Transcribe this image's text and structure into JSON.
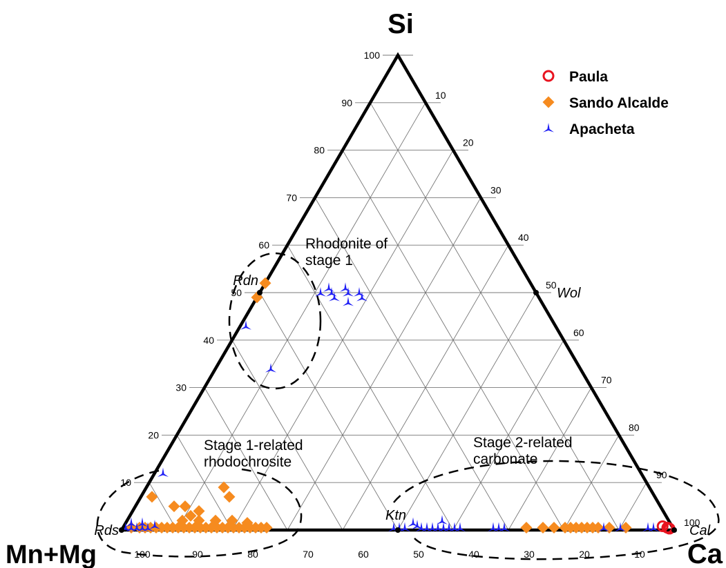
{
  "chart_data": {
    "type": "ternary",
    "vertices": {
      "top": "Si",
      "left": "Mn+Mg",
      "right": "Ca"
    },
    "ticks": {
      "si_axis": [
        "100",
        "90",
        "80",
        "70",
        "60",
        "50",
        "40",
        "30",
        "20",
        "10"
      ],
      "ca_axis": [
        "10",
        "20",
        "30",
        "40",
        "50",
        "60",
        "70",
        "80",
        "90",
        "100"
      ],
      "mn_axis": [
        "100",
        "90",
        "80",
        "70",
        "60",
        "50",
        "40",
        "30",
        "20",
        "10"
      ]
    },
    "legend": [
      {
        "name": "Paula",
        "marker": "circle",
        "color": "#e8131f"
      },
      {
        "name": "Sando Alcalde",
        "marker": "diamond",
        "color": "#f68b1f"
      },
      {
        "name": "Apacheta",
        "marker": "tripod",
        "color": "#1f1ff5"
      }
    ],
    "minerals": [
      {
        "name": "Rdn",
        "si": 50,
        "ca": 0
      },
      {
        "name": "Wol",
        "si": 50,
        "ca": 50
      },
      {
        "name": "Rds",
        "si": 0,
        "ca": 0
      },
      {
        "name": "Ktn",
        "si": 0,
        "ca": 50
      },
      {
        "name": "Cal",
        "si": 0,
        "ca": 100
      }
    ],
    "annotations": [
      {
        "lines": [
          "Rhodonite of",
          "stage 1"
        ]
      },
      {
        "lines": [
          "Stage 1-related",
          "rhodochrosite"
        ]
      },
      {
        "lines": [
          "Stage 2-related",
          "carbonate"
        ]
      }
    ],
    "series": [
      {
        "name": "Paula",
        "points": [
          [
            0.5,
            98.5
          ],
          [
            0.3,
            99
          ],
          [
            0.8,
            97.5
          ],
          [
            0.4,
            98.8
          ]
        ]
      },
      {
        "name": "Sando Alcalde",
        "points": [
          [
            52,
            0
          ],
          [
            49,
            0
          ],
          [
            7,
            16
          ],
          [
            7,
            2
          ],
          [
            9,
            14
          ],
          [
            4,
            12
          ],
          [
            5,
            9
          ],
          [
            5,
            7
          ],
          [
            0.5,
            1.5
          ],
          [
            0.5,
            3
          ],
          [
            0.5,
            4
          ],
          [
            0.5,
            5
          ],
          [
            0.5,
            6
          ],
          [
            0.5,
            7
          ],
          [
            0.5,
            8
          ],
          [
            0.5,
            9
          ],
          [
            0.5,
            10
          ],
          [
            0.5,
            11
          ],
          [
            0.5,
            12
          ],
          [
            0.5,
            13
          ],
          [
            0.5,
            14
          ],
          [
            0.5,
            15
          ],
          [
            0.5,
            16
          ],
          [
            0.5,
            17
          ],
          [
            0.5,
            18
          ],
          [
            0.5,
            19
          ],
          [
            0.5,
            20
          ],
          [
            0.5,
            21
          ],
          [
            0.5,
            22
          ],
          [
            0.5,
            23
          ],
          [
            0.5,
            24
          ],
          [
            0.5,
            25
          ],
          [
            0.5,
            26
          ],
          [
            2,
            10
          ],
          [
            2,
            13
          ],
          [
            2,
            16
          ],
          [
            2,
            19
          ],
          [
            1.5,
            22
          ],
          [
            3,
            11
          ],
          [
            0.5,
            73
          ],
          [
            0.5,
            76
          ],
          [
            0.5,
            78
          ],
          [
            0.5,
            80
          ],
          [
            0.5,
            81
          ],
          [
            0.5,
            82
          ],
          [
            0.5,
            83
          ],
          [
            0.5,
            84
          ],
          [
            0.5,
            85
          ],
          [
            0.5,
            86
          ],
          [
            0.5,
            88
          ],
          [
            0.5,
            91
          ]
        ]
      },
      {
        "name": "Apacheta",
        "points": [
          [
            50,
            11
          ],
          [
            51,
            12
          ],
          [
            50,
            13
          ],
          [
            49,
            14
          ],
          [
            51,
            15
          ],
          [
            50,
            16
          ],
          [
            48,
            17
          ],
          [
            50,
            18
          ],
          [
            49,
            19
          ],
          [
            43,
            1
          ],
          [
            34,
            10
          ],
          [
            12,
            1.5
          ],
          [
            0.5,
            0.5
          ],
          [
            0.5,
            1.5
          ],
          [
            0.5,
            2.5
          ],
          [
            0.5,
            3.5
          ],
          [
            0.5,
            4.5
          ],
          [
            1,
            5.5
          ],
          [
            1.5,
            3
          ],
          [
            1.5,
            1
          ],
          [
            0.5,
            49
          ],
          [
            0.5,
            50
          ],
          [
            0.5,
            51
          ],
          [
            1.5,
            52
          ],
          [
            1,
            53
          ],
          [
            0.5,
            54
          ],
          [
            0.5,
            55
          ],
          [
            0.5,
            56
          ],
          [
            0.5,
            57
          ],
          [
            0.5,
            58
          ],
          [
            0.5,
            59
          ],
          [
            0.5,
            60
          ],
          [
            0.5,
            61
          ],
          [
            2,
            57
          ],
          [
            0.5,
            67
          ],
          [
            0.5,
            68
          ],
          [
            0.5,
            69
          ],
          [
            0.5,
            87
          ],
          [
            0.5,
            90
          ],
          [
            0.5,
            95
          ],
          [
            0.5,
            96
          ]
        ]
      }
    ]
  }
}
